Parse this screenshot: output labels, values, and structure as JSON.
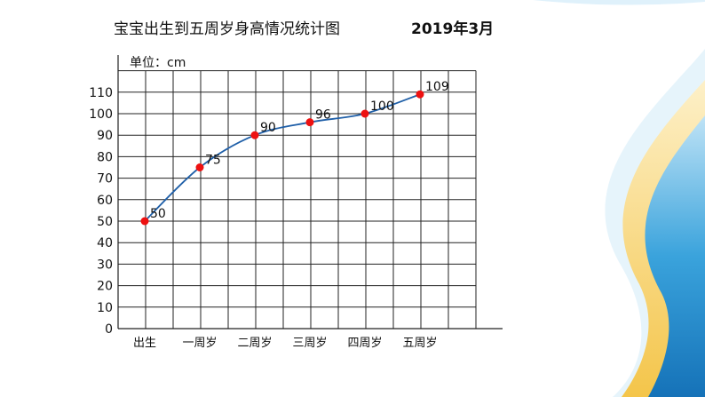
{
  "slide": {
    "title": "宝宝出生到五周岁身高情况统计图",
    "date": "2019年3月",
    "accent_colors": [
      "#1e88c9",
      "#5bb8e6",
      "#f5c542",
      "#fbe3a4"
    ]
  },
  "chart_data": {
    "type": "line",
    "title": "宝宝出生到五周岁身高情况统计图",
    "subtitle": "2019年3月",
    "ylabel": "单位：cm",
    "xlabel": "",
    "categories": [
      "出生",
      "一周岁",
      "二周岁",
      "三周岁",
      "四周岁",
      "五周岁"
    ],
    "values": [
      50,
      75,
      90,
      96,
      100,
      109
    ],
    "data_labels": [
      "50",
      "75",
      "90",
      "96",
      "100",
      "109"
    ],
    "ylim": [
      0,
      110
    ],
    "yticks": [
      0,
      10,
      20,
      30,
      40,
      50,
      60,
      70,
      80,
      90,
      100,
      110
    ],
    "ytick_labels": [
      "0",
      "10",
      "20",
      "30",
      "40",
      "50",
      "60",
      "70",
      "80",
      "90",
      "100",
      "110"
    ],
    "grid": true,
    "line_color": "#1f5fa8",
    "marker_color": "#ee1111"
  }
}
